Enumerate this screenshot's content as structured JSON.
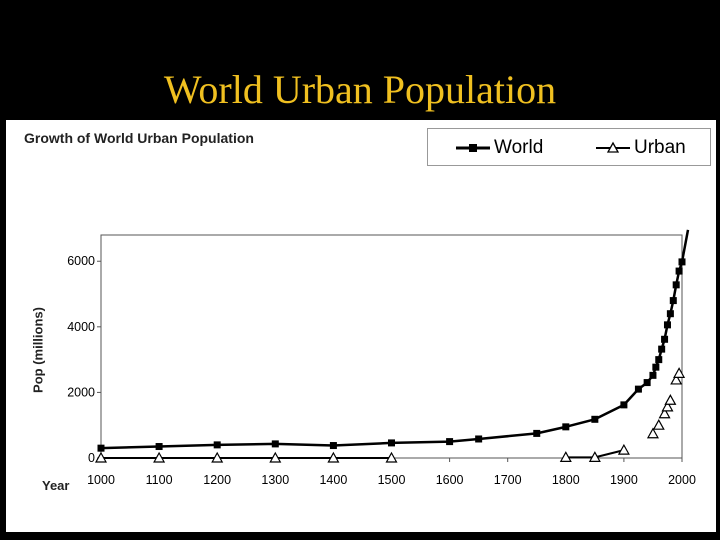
{
  "slide": {
    "title": "World Urban Population"
  },
  "colors": {
    "background": "#000000",
    "title": "#f0c020",
    "series": "#000000"
  },
  "chart_data": {
    "type": "line",
    "title": "Growth of World Urban Population",
    "xlabel": "Year",
    "ylabel": "Pop (millions)",
    "xlim": [
      1000,
      2000
    ],
    "ylim": [
      0,
      6800
    ],
    "xticks": [
      1000,
      1100,
      1200,
      1300,
      1400,
      1500,
      1600,
      1700,
      1800,
      1900,
      2000
    ],
    "yticks": [
      0,
      2000,
      4000,
      6000
    ],
    "legend_position": "top-right",
    "series": [
      {
        "name": "World",
        "marker": "square",
        "x": [
          1000,
          1100,
          1200,
          1300,
          1400,
          1500,
          1600,
          1650,
          1750,
          1800,
          1850,
          1900,
          1925,
          1940,
          1950,
          1955,
          1960,
          1965,
          1970,
          1975,
          1980,
          1985,
          1990,
          1995,
          2000
        ],
        "values": [
          300,
          350,
          400,
          430,
          380,
          460,
          500,
          580,
          750,
          950,
          1180,
          1620,
          2100,
          2300,
          2520,
          2770,
          3000,
          3320,
          3620,
          4060,
          4400,
          4800,
          5280,
          5700,
          5980
        ]
      },
      {
        "name": "Urban",
        "marker": "triangle",
        "x": [
          1000,
          1100,
          1200,
          1300,
          1400,
          1500,
          1800,
          1850,
          1900,
          1950,
          1960,
          1970,
          1975,
          1980,
          1990,
          1995
        ],
        "values": [
          0,
          0,
          0,
          0,
          0,
          0,
          20,
          20,
          240,
          740,
          1000,
          1350,
          1560,
          1760,
          2380,
          2580
        ]
      }
    ]
  }
}
